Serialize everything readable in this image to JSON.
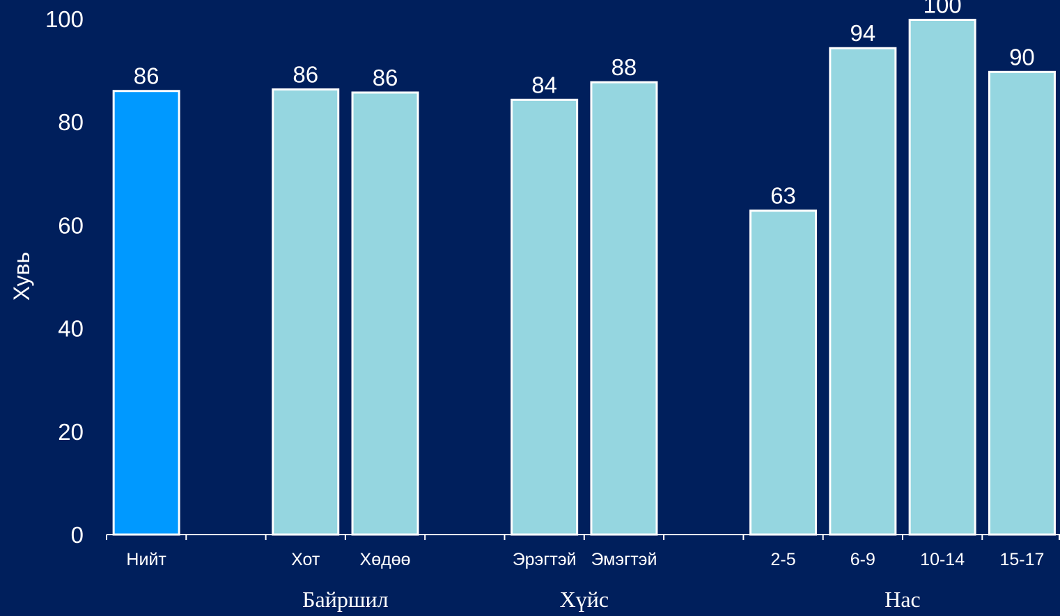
{
  "chart_data": {
    "type": "bar",
    "title": "",
    "xlabel": "",
    "ylabel": "Хувь",
    "ylim": [
      0,
      100
    ],
    "yticks": [
      0,
      20,
      40,
      60,
      80,
      100
    ],
    "grid": false,
    "legend": "none",
    "categories": [
      "Нийт",
      "",
      "Хот",
      "Хөдөө",
      "",
      "Эрэгтэй",
      "Эмэгтэй",
      "",
      "2-5",
      "6-9",
      "10-14",
      "15-17"
    ],
    "values": [
      86,
      null,
      86.3,
      85.7,
      null,
      84.3,
      87.7,
      null,
      62.8,
      94.3,
      99.8,
      89.7
    ],
    "value_labels": [
      "86",
      "",
      "86",
      "86",
      "",
      "84",
      "88",
      "",
      "63",
      "94",
      "100",
      "90"
    ],
    "bar_colors": [
      "#0099ff",
      "",
      "#95d6e0",
      "#95d6e0",
      "",
      "#95d6e0",
      "#95d6e0",
      "",
      "#95d6e0",
      "#95d6e0",
      "#95d6e0",
      "#95d6e0"
    ],
    "groups": [
      {
        "label": "Байршил",
        "categories": [
          "Хот",
          "Хөдөө"
        ]
      },
      {
        "label": "Хүйс",
        "categories": [
          "Эрэгтэй",
          "Эмэгтэй"
        ]
      },
      {
        "label": "Нас",
        "categories": [
          "2-5",
          "6-9",
          "10-14",
          "15-17"
        ]
      }
    ]
  },
  "colors": {
    "background": "#001f5c",
    "highlight_bar": "#0099ff",
    "bar": "#95d6e0",
    "bar_outline": "#ffffff",
    "text": "#ffffff"
  }
}
